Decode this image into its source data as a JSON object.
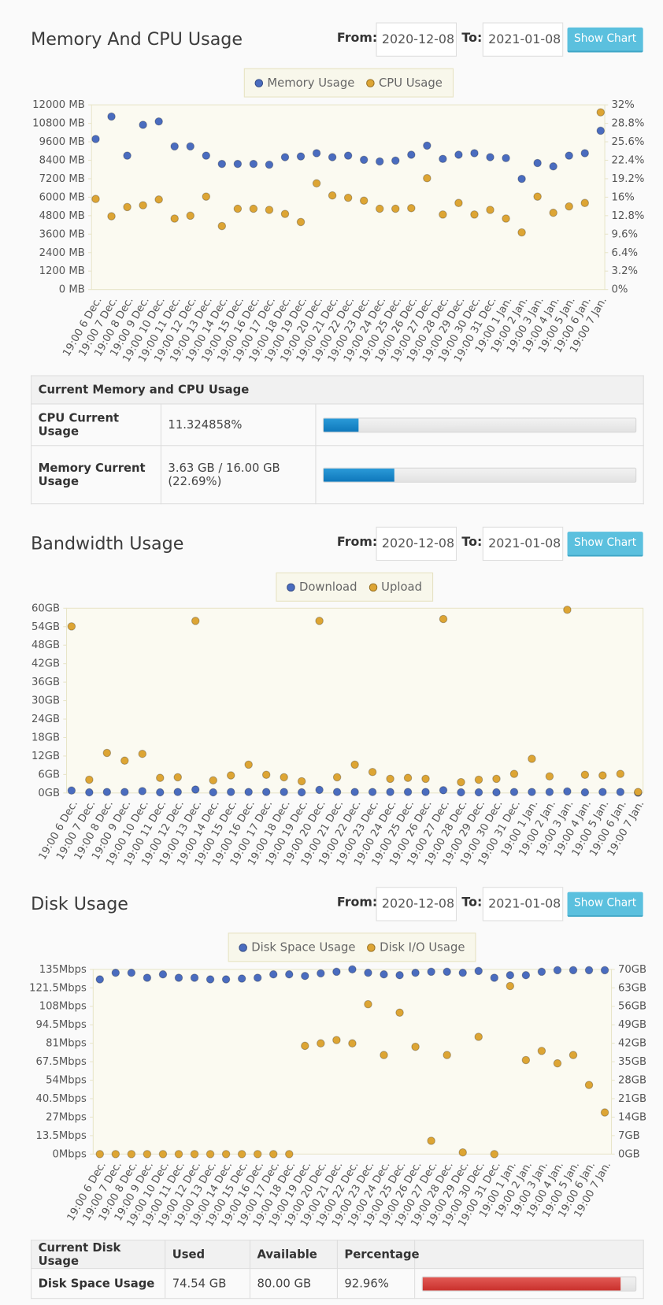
{
  "sections": [
    {
      "title": "Memory And CPU Usage",
      "from_label": "From:",
      "from": "2020-12-08",
      "to_label": "To:",
      "to": "2021-01-08",
      "button": "Show Chart"
    },
    {
      "title": "Bandwidth Usage",
      "from_label": "From:",
      "from": "2020-12-08",
      "to_label": "To:",
      "to": "2021-01-08",
      "button": "Show Chart"
    },
    {
      "title": "Disk Usage",
      "from_label": "From:",
      "from": "2020-12-08",
      "to_label": "To:",
      "to": "2021-01-08",
      "button": "Show Chart"
    }
  ],
  "chart_data": [
    {
      "type": "line",
      "legend": "top",
      "categories": [
        "19:00 6 Dec.",
        "19:00 7 Dec.",
        "19:00 8 Dec.",
        "19:00 9 Dec.",
        "19:00 10 Dec.",
        "19:00 11 Dec.",
        "19:00 12 Dec.",
        "19:00 13 Dec.",
        "19:00 14 Dec.",
        "19:00 15 Dec.",
        "19:00 16 Dec.",
        "19:00 17 Dec.",
        "19:00 18 Dec.",
        "19:00 19 Dec.",
        "19:00 20 Dec.",
        "19:00 21 Dec.",
        "19:00 22 Dec.",
        "19:00 23 Dec.",
        "19:00 24 Dec.",
        "19:00 25 Dec.",
        "19:00 26 Dec.",
        "19:00 27 Dec.",
        "19:00 28 Dec.",
        "19:00 29 Dec.",
        "19:00 30 Dec.",
        "19:00 31 Dec.",
        "19:00 1 Jan.",
        "19:00 2 Jan.",
        "19:00 3 Jan.",
        "19:00 4 Jan.",
        "19:00 5 Jan.",
        "19:00 6 Jan.",
        "19:00 7 Jan."
      ],
      "series": [
        {
          "name": "Memory Usage",
          "color": "#4a6cbf",
          "values": [
            9780,
            11240,
            8700,
            10700,
            10920,
            9300,
            9300,
            8700,
            8160,
            8160,
            8160,
            8110,
            8600,
            8650,
            8860,
            8600,
            8700,
            8430,
            8320,
            8380,
            8760,
            9350,
            8490,
            8760,
            8860,
            8600,
            8540,
            7190,
            8220,
            8000,
            8700,
            8860,
            10320
          ]
        },
        {
          "name": "CPU Usage",
          "color": "#dda534",
          "axis": "y2",
          "values": [
            15.7,
            12.7,
            14.3,
            14.6,
            15.6,
            12.3,
            12.8,
            16.1,
            11.0,
            14.0,
            14.0,
            13.8,
            13.1,
            11.7,
            18.4,
            16.3,
            15.9,
            15.4,
            14.0,
            14.0,
            14.1,
            19.3,
            13.0,
            15.0,
            13.0,
            13.8,
            12.3,
            9.9,
            16.1,
            13.3,
            14.4,
            15.0,
            30.7
          ]
        }
      ],
      "ylim": [
        0,
        12000
      ],
      "yticks": [
        {
          "value": 0,
          "label": "0 MB"
        },
        {
          "value": 1200,
          "label": "1200 MB"
        },
        {
          "value": 2400,
          "label": "2400 MB"
        },
        {
          "value": 3600,
          "label": "3600 MB"
        },
        {
          "value": 4800,
          "label": "4800 MB"
        },
        {
          "value": 6000,
          "label": "6000 MB"
        },
        {
          "value": 7200,
          "label": "7200 MB"
        },
        {
          "value": 8400,
          "label": "8400 MB"
        },
        {
          "value": 9600,
          "label": "9600 MB"
        },
        {
          "value": 10800,
          "label": "10800 MB"
        },
        {
          "value": 12000,
          "label": "12000 MB"
        }
      ],
      "y2lim": [
        0,
        32
      ],
      "y2ticks": [
        {
          "value": 0,
          "label": "0%"
        },
        {
          "value": 3.2,
          "label": "3.2%"
        },
        {
          "value": 6.4,
          "label": "6.4%"
        },
        {
          "value": 9.6,
          "label": "9.6%"
        },
        {
          "value": 12.8,
          "label": "12.8%"
        },
        {
          "value": 16,
          "label": "16%"
        },
        {
          "value": 19.2,
          "label": "19.2%"
        },
        {
          "value": 22.4,
          "label": "22.4%"
        },
        {
          "value": 25.6,
          "label": "25.6%"
        },
        {
          "value": 28.8,
          "label": "28.8%"
        },
        {
          "value": 32,
          "label": "32%"
        }
      ]
    },
    {
      "type": "line",
      "legend": "top",
      "categories": [
        "19:00 6 Dec.",
        "19:00 7 Dec.",
        "19:00 8 Dec.",
        "19:00 9 Dec.",
        "19:00 10 Dec.",
        "19:00 11 Dec.",
        "19:00 12 Dec.",
        "19:00 13 Dec.",
        "19:00 14 Dec.",
        "19:00 15 Dec.",
        "19:00 16 Dec.",
        "19:00 17 Dec.",
        "19:00 18 Dec.",
        "19:00 19 Dec.",
        "19:00 20 Dec.",
        "19:00 21 Dec.",
        "19:00 22 Dec.",
        "19:00 23 Dec.",
        "19:00 24 Dec.",
        "19:00 25 Dec.",
        "19:00 26 Dec.",
        "19:00 27 Dec.",
        "19:00 28 Dec.",
        "19:00 29 Dec.",
        "19:00 30 Dec.",
        "19:00 31 Dec.",
        "19:00 1 Jan.",
        "19:00 2 Jan.",
        "19:00 3 Jan.",
        "19:00 4 Jan.",
        "19:00 5 Jan.",
        "19:00 6 Jan.",
        "19:00 7 Jan."
      ],
      "series": [
        {
          "name": "Download",
          "color": "#4a6cbf",
          "values": [
            0.8,
            0.2,
            0.3,
            0.3,
            0.6,
            0.2,
            0.3,
            1.1,
            0.2,
            0.3,
            0.3,
            0.3,
            0.3,
            0.2,
            1.0,
            0.3,
            0.3,
            0.3,
            0.3,
            0.3,
            0.3,
            0.9,
            0.2,
            0.2,
            0.2,
            0.3,
            0.3,
            0.3,
            0.5,
            0.2,
            0.3,
            0.3,
            0.1
          ]
        },
        {
          "name": "Upload",
          "color": "#dda534",
          "values": [
            54.1,
            4.3,
            13.0,
            10.5,
            12.7,
            4.9,
            5.1,
            55.9,
            4.1,
            5.7,
            9.2,
            5.9,
            5.1,
            3.8,
            55.9,
            5.1,
            9.2,
            6.8,
            4.6,
            4.9,
            4.6,
            56.5,
            3.5,
            4.3,
            4.6,
            6.2,
            11.1,
            5.4,
            59.5,
            5.9,
            5.7,
            6.2,
            0.3
          ]
        }
      ],
      "ylim": [
        0,
        60
      ],
      "yticks": [
        {
          "value": 0,
          "label": "0GB"
        },
        {
          "value": 6,
          "label": "6GB"
        },
        {
          "value": 12,
          "label": "12GB"
        },
        {
          "value": 18,
          "label": "18GB"
        },
        {
          "value": 24,
          "label": "24GB"
        },
        {
          "value": 30,
          "label": "30GB"
        },
        {
          "value": 36,
          "label": "36GB"
        },
        {
          "value": 42,
          "label": "42GB"
        },
        {
          "value": 48,
          "label": "48GB"
        },
        {
          "value": 54,
          "label": "54GB"
        },
        {
          "value": 60,
          "label": "60GB"
        }
      ]
    },
    {
      "type": "line",
      "legend": "top",
      "categories": [
        "19:00 6 Dec.",
        "19:00 7 Dec.",
        "19:00 8 Dec.",
        "19:00 9 Dec.",
        "19:00 10 Dec.",
        "19:00 11 Dec.",
        "19:00 12 Dec.",
        "19:00 13 Dec.",
        "19:00 14 Dec.",
        "19:00 15 Dec.",
        "19:00 16 Dec.",
        "19:00 17 Dec.",
        "19:00 18 Dec.",
        "19:00 19 Dec.",
        "19:00 20 Dec.",
        "19:00 21 Dec.",
        "19:00 22 Dec.",
        "19:00 23 Dec.",
        "19:00 24 Dec.",
        "19:00 25 Dec.",
        "19:00 26 Dec.",
        "19:00 27 Dec.",
        "19:00 28 Dec.",
        "19:00 29 Dec.",
        "19:00 30 Dec.",
        "19:00 31 Dec.",
        "19:00 1 Jan.",
        "19:00 2 Jan.",
        "19:00 3 Jan.",
        "19:00 4 Jan.",
        "19:00 5 Jan.",
        "19:00 6 Jan.",
        "19:00 7 Jan."
      ],
      "series": [
        {
          "name": "Disk Space Usage",
          "color": "#4a6cbf",
          "axis": "y2",
          "values": [
            66.2,
            68.7,
            68.7,
            66.8,
            68.1,
            66.8,
            66.8,
            66.2,
            66.2,
            66.5,
            66.8,
            68.1,
            68.1,
            67.5,
            68.5,
            69.1,
            70.0,
            68.7,
            68.1,
            67.8,
            68.7,
            69.1,
            69.1,
            68.7,
            69.4,
            66.8,
            67.8,
            67.8,
            69.1,
            69.7,
            69.7,
            69.7,
            69.7
          ]
        },
        {
          "name": "Disk I/O Usage",
          "color": "#dda534",
          "values": [
            0,
            0,
            0,
            0,
            0,
            0,
            0,
            0,
            0,
            0,
            0,
            0,
            0,
            79.1,
            80.9,
            83.3,
            80.9,
            109.5,
            72.4,
            103.4,
            78.4,
            9.7,
            72.4,
            1.2,
            85.7,
            0,
            122.8,
            68.7,
            75.4,
            66.3,
            72.4,
            50.5,
            30.4
          ]
        }
      ],
      "ylim": [
        0,
        135
      ],
      "yticks": [
        {
          "value": 0,
          "label": "0Mbps"
        },
        {
          "value": 13.5,
          "label": "13.5Mbps"
        },
        {
          "value": 27,
          "label": "27Mbps"
        },
        {
          "value": 40.5,
          "label": "40.5Mbps"
        },
        {
          "value": 54,
          "label": "54Mbps"
        },
        {
          "value": 67.5,
          "label": "67.5Mbps"
        },
        {
          "value": 81,
          "label": "81Mbps"
        },
        {
          "value": 94.5,
          "label": "94.5Mbps"
        },
        {
          "value": 108,
          "label": "108Mbps"
        },
        {
          "value": 121.5,
          "label": "121.5Mbps"
        },
        {
          "value": 135,
          "label": "135Mbps"
        }
      ],
      "y2lim": [
        0,
        70
      ],
      "y2ticks": [
        {
          "value": 0,
          "label": "0GB"
        },
        {
          "value": 7,
          "label": "7GB"
        },
        {
          "value": 14,
          "label": "14GB"
        },
        {
          "value": 21,
          "label": "21GB"
        },
        {
          "value": 28,
          "label": "28GB"
        },
        {
          "value": 35,
          "label": "35GB"
        },
        {
          "value": 42,
          "label": "42GB"
        },
        {
          "value": 49,
          "label": "49GB"
        },
        {
          "value": 56,
          "label": "56GB"
        },
        {
          "value": 63,
          "label": "63GB"
        },
        {
          "value": 70,
          "label": "70GB"
        }
      ]
    }
  ],
  "memory_table": {
    "title": "Current Memory and CPU Usage",
    "rows": [
      {
        "label": "CPU Current Usage",
        "value": 11.324858,
        "value_label": "11.324858%"
      },
      {
        "label": "Memory Current Usage",
        "value": 22.69,
        "value_label": "3.63 GB / 16.00 GB (22.69%)"
      }
    ]
  },
  "disk_table": {
    "columns": [
      "Current Disk Usage",
      "Used",
      "Available",
      "Percentage"
    ],
    "rows": [
      {
        "label": "Disk Space Usage",
        "used": "74.54 GB",
        "available": "80.00 GB",
        "percentage": 92.96,
        "percentage_label": "92.96%"
      }
    ]
  }
}
